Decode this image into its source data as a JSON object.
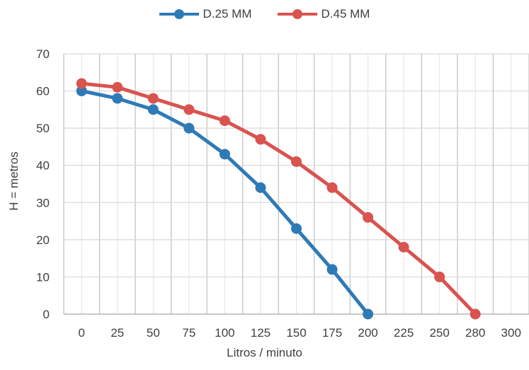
{
  "chart_data": {
    "type": "line",
    "title": "",
    "xlabel": "Litros / minuto",
    "ylabel": "H = metros",
    "categories": [
      "0",
      "25",
      "50",
      "75",
      "100",
      "125",
      "150",
      "175",
      "200",
      "225",
      "250",
      "280",
      "300"
    ],
    "ylim": [
      0,
      70
    ],
    "yticks": [
      0,
      10,
      20,
      30,
      40,
      50,
      60,
      70
    ],
    "grid": true,
    "legend_position": "top",
    "series": [
      {
        "name": "D.25 MM",
        "color": "#2e7ab6",
        "values": [
          60,
          58,
          55,
          50,
          43,
          34,
          23,
          12,
          0,
          null,
          null,
          null,
          null
        ]
      },
      {
        "name": "D.45 MM",
        "color": "#d9534f",
        "values": [
          62,
          61,
          58,
          55,
          52,
          47,
          41,
          34,
          26,
          18,
          10,
          0,
          null
        ]
      }
    ]
  }
}
